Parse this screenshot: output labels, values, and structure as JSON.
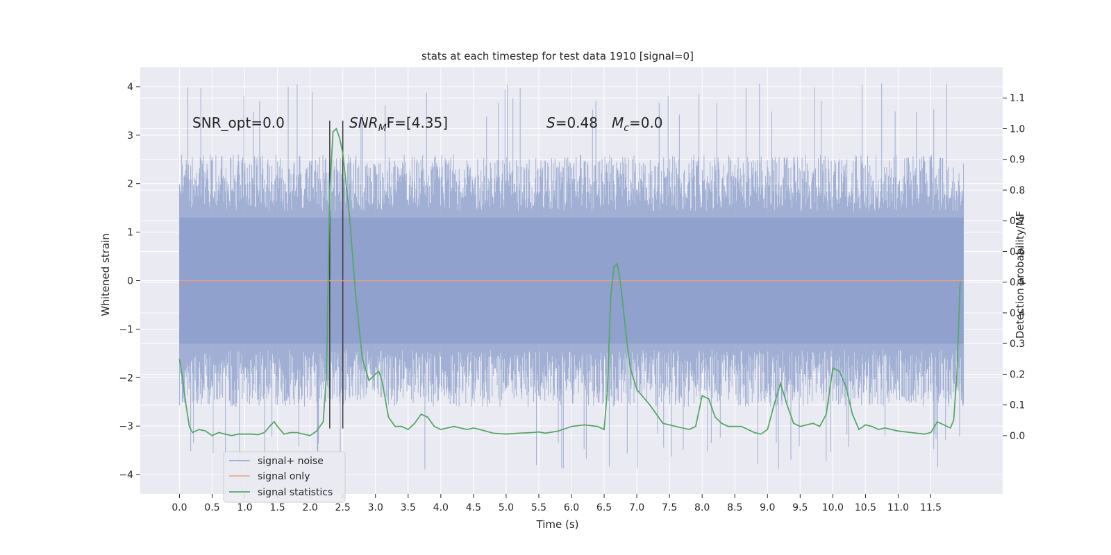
{
  "chart_data": {
    "type": "line",
    "title": "stats at each timestep for test data 1910 [signal=0]",
    "xlabel": "Time (s)",
    "ylabel": "Whitened strain",
    "y2label": "Detection probability/MF",
    "xlim": [
      -0.6,
      12.6
    ],
    "ylim": [
      -4.4,
      4.4
    ],
    "y2lim": [
      -0.19,
      1.2
    ],
    "x_ticks": [
      0.0,
      0.5,
      1.0,
      1.5,
      2.0,
      2.5,
      3.0,
      3.5,
      4.0,
      4.5,
      5.0,
      5.5,
      6.0,
      6.5,
      7.0,
      7.5,
      8.0,
      8.5,
      9.0,
      9.5,
      10.0,
      10.5,
      11.0,
      11.5
    ],
    "x_tick_labels": [
      "0.0",
      "0.5",
      "1.0",
      "1.5",
      "2.0",
      "2.5",
      "3.0",
      "3.5",
      "4.0",
      "4.5",
      "5.0",
      "5.5",
      "6.0",
      "6.5",
      "7.0",
      "7.5",
      "8.0",
      "8.5",
      "9.0",
      "9.5",
      "10.0",
      "10.5",
      "11.0",
      "11.5"
    ],
    "y_ticks": [
      4,
      3,
      2,
      1,
      0,
      -1,
      -2,
      -3,
      -4
    ],
    "y_tick_labels": [
      "4",
      "3",
      "2",
      "1",
      "0",
      "−1",
      "−2",
      "−3",
      "−4"
    ],
    "y2_ticks": [
      1.1,
      1.0,
      0.9,
      0.8,
      0.7,
      0.6,
      0.5,
      0.4,
      0.3,
      0.2,
      0.1,
      0.0
    ],
    "y2_tick_labels": [
      "1.1",
      "1.0",
      "0.9",
      "0.8",
      "0.7",
      "0.6",
      "0.5",
      "0.4",
      "0.3",
      "0.2",
      "0.1",
      "0.0"
    ],
    "grid": true,
    "legend_position": "lower-left",
    "annotations": {
      "snr_opt": "SNR_opt=0.0",
      "snr_mf_name": "SNR",
      "snr_mf_sub": "M",
      "snr_mf_rest": "F=[4.35]",
      "s_name": "S",
      "s_value": "=0.48",
      "mc_name": "M",
      "mc_sub": "c",
      "mc_value": "=0.0"
    },
    "series": [
      {
        "name": "signal+ noise",
        "color": "#8da0cb",
        "x_range": [
          0.0,
          12.0
        ],
        "envelope_estimate": {
          "typical_max": 2.6,
          "typical_min": -2.6,
          "peak_max": 4.1,
          "peak_min": -3.9
        }
      },
      {
        "name": "signal only",
        "color": "#e8a582",
        "x": [
          0.0,
          12.0
        ],
        "y": [
          0.0,
          0.0
        ]
      },
      {
        "name": "signal statistics",
        "color": "#55a868",
        "axis": "right",
        "x": [
          0.0,
          0.05,
          0.1,
          0.15,
          0.2,
          0.3,
          0.4,
          0.5,
          0.6,
          0.7,
          0.8,
          0.9,
          1.0,
          1.1,
          1.2,
          1.3,
          1.4,
          1.45,
          1.5,
          1.6,
          1.7,
          1.8,
          1.9,
          2.0,
          2.1,
          2.2,
          2.25,
          2.3,
          2.35,
          2.4,
          2.45,
          2.5,
          2.6,
          2.7,
          2.8,
          2.9,
          3.0,
          3.05,
          3.1,
          3.2,
          3.3,
          3.4,
          3.5,
          3.6,
          3.7,
          3.8,
          3.9,
          4.0,
          4.1,
          4.2,
          4.3,
          4.4,
          4.5,
          4.6,
          4.8,
          5.0,
          5.2,
          5.4,
          5.5,
          5.6,
          5.8,
          6.0,
          6.2,
          6.4,
          6.5,
          6.55,
          6.6,
          6.65,
          6.7,
          6.75,
          6.8,
          6.85,
          6.9,
          7.0,
          7.2,
          7.4,
          7.6,
          7.8,
          7.9,
          8.0,
          8.1,
          8.2,
          8.3,
          8.4,
          8.5,
          8.6,
          8.7,
          8.8,
          8.9,
          9.0,
          9.1,
          9.2,
          9.3,
          9.4,
          9.5,
          9.6,
          9.7,
          9.8,
          9.9,
          10.0,
          10.1,
          10.2,
          10.3,
          10.4,
          10.5,
          10.6,
          10.7,
          10.8,
          11.0,
          11.2,
          11.4,
          11.5,
          11.6,
          11.7,
          11.8,
          11.85,
          11.9,
          11.95
        ],
        "y": [
          0.25,
          0.18,
          0.1,
          0.03,
          0.01,
          0.02,
          0.015,
          0.0,
          0.01,
          0.005,
          0.0,
          0.005,
          0.005,
          0.005,
          0.003,
          0.01,
          0.035,
          0.045,
          0.03,
          0.005,
          0.01,
          0.01,
          0.005,
          0.0,
          0.015,
          0.045,
          0.2,
          0.8,
          0.99,
          1.0,
          0.97,
          0.92,
          0.72,
          0.45,
          0.25,
          0.18,
          0.2,
          0.21,
          0.18,
          0.06,
          0.03,
          0.03,
          0.02,
          0.04,
          0.07,
          0.06,
          0.03,
          0.02,
          0.025,
          0.03,
          0.025,
          0.02,
          0.025,
          0.02,
          0.008,
          0.005,
          0.008,
          0.01,
          0.012,
          0.008,
          0.015,
          0.03,
          0.035,
          0.03,
          0.02,
          0.15,
          0.45,
          0.55,
          0.56,
          0.5,
          0.4,
          0.3,
          0.22,
          0.15,
          0.1,
          0.04,
          0.03,
          0.02,
          0.03,
          0.13,
          0.12,
          0.06,
          0.04,
          0.03,
          0.03,
          0.03,
          0.02,
          0.01,
          0.005,
          0.02,
          0.1,
          0.17,
          0.1,
          0.04,
          0.03,
          0.035,
          0.04,
          0.03,
          0.07,
          0.22,
          0.21,
          0.16,
          0.07,
          0.02,
          0.035,
          0.03,
          0.02,
          0.025,
          0.015,
          0.01,
          0.005,
          0.01,
          0.045,
          0.035,
          0.025,
          0.05,
          0.2,
          0.5
        ]
      }
    ],
    "vertical_markers": {
      "x": [
        2.3,
        2.5
      ],
      "color": "#3a3a3a"
    }
  }
}
